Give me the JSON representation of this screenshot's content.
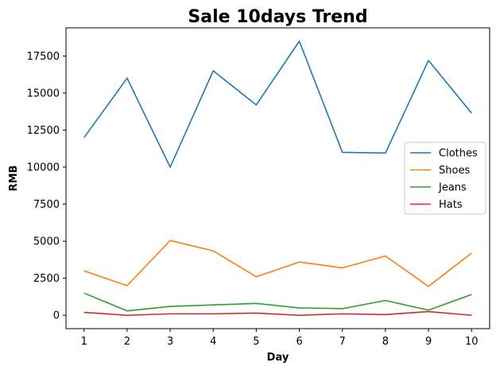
{
  "chart_data": {
    "type": "line",
    "title": "Sale 10days Trend",
    "xlabel": "Day",
    "ylabel": "RMB",
    "x": [
      1,
      2,
      3,
      4,
      5,
      6,
      7,
      8,
      9,
      10
    ],
    "x_ticks": [
      "1",
      "2",
      "3",
      "4",
      "5",
      "6",
      "7",
      "8",
      "9",
      "10"
    ],
    "y_ticks": [
      "0",
      "2500",
      "5000",
      "7500",
      "10000",
      "12500",
      "15000",
      "17500"
    ],
    "y_tick_values": [
      0,
      2500,
      5000,
      7500,
      10000,
      12500,
      15000,
      17500
    ],
    "xlim": [
      0.58,
      10.42
    ],
    "ylim": [
      -900,
      19400
    ],
    "grid": false,
    "legend_position": "right",
    "series": [
      {
        "name": "Clothes",
        "color": "#1f77b4",
        "values": [
          12000,
          16000,
          10000,
          16500,
          14200,
          18500,
          11000,
          10950,
          17200,
          13650
        ]
      },
      {
        "name": "Shoes",
        "color": "#ff7f0e",
        "values": [
          3000,
          2000,
          5050,
          4350,
          2600,
          3600,
          3200,
          4000,
          1950,
          4200
        ]
      },
      {
        "name": "Jeans",
        "color": "#2ca02c",
        "values": [
          1500,
          300,
          600,
          700,
          800,
          500,
          450,
          1000,
          350,
          1400
        ]
      },
      {
        "name": "Hats",
        "color": "#d62728",
        "values": [
          200,
          0,
          100,
          100,
          150,
          0,
          100,
          50,
          250,
          0
        ]
      }
    ]
  }
}
